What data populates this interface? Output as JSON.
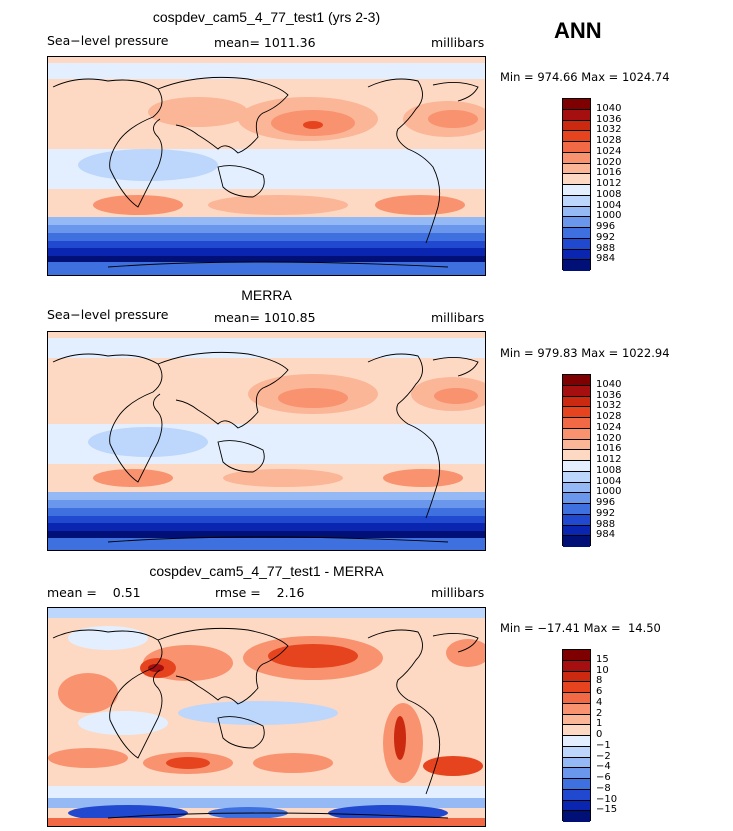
{
  "season": "ANN",
  "panels": [
    {
      "title": "cospdev_cam5_4_77_test1 (yrs 2-3)",
      "left_label": "Sea−level pressure",
      "center_label": "mean= 1011.36",
      "units": "millibars",
      "minmax": "Min = 974.66 Max = 1024.74",
      "colorbar": {
        "labels": [
          "1040",
          "1036",
          "1032",
          "1028",
          "1024",
          "1020",
          "1016",
          "1012",
          "1008",
          "1004",
          "1000",
          "996",
          "992",
          "988",
          "984"
        ],
        "colors": [
          "#7f0000",
          "#a50f0f",
          "#cc2a10",
          "#e5441f",
          "#f26a45",
          "#f8926f",
          "#fbb597",
          "#fdd9c3",
          "#e3efff",
          "#bdd6fb",
          "#94b9f5",
          "#6a97ec",
          "#3f70e0",
          "#2049cf",
          "#0a26b0",
          "#001077"
        ]
      }
    },
    {
      "title": "MERRA",
      "left_label": "Sea−level pressure",
      "center_label": "mean= 1010.85",
      "units": "millibars",
      "minmax": "Min = 979.83 Max = 1022.94",
      "colorbar": {
        "labels": [
          "1040",
          "1036",
          "1032",
          "1028",
          "1024",
          "1020",
          "1016",
          "1012",
          "1008",
          "1004",
          "1000",
          "996",
          "992",
          "988",
          "984"
        ],
        "colors": [
          "#7f0000",
          "#a50f0f",
          "#cc2a10",
          "#e5441f",
          "#f26a45",
          "#f8926f",
          "#fbb597",
          "#fdd9c3",
          "#e3efff",
          "#bdd6fb",
          "#94b9f5",
          "#6a97ec",
          "#3f70e0",
          "#2049cf",
          "#0a26b0",
          "#001077"
        ]
      }
    },
    {
      "title": "cospdev_cam5_4_77_test1 - MERRA",
      "left_label": "mean =    0.51",
      "center_label": "rmse =    2.16",
      "units": "millibars",
      "minmax": "Min = −17.41 Max =  14.50",
      "colorbar": {
        "labels": [
          "15",
          "10",
          "8",
          "6",
          "4",
          "2",
          "1",
          "0",
          "−1",
          "−2",
          "−4",
          "−6",
          "−8",
          "−10",
          "−15"
        ],
        "colors": [
          "#7f0000",
          "#a50f0f",
          "#cc2a10",
          "#e5441f",
          "#f26a45",
          "#f8926f",
          "#fbb597",
          "#fdd9c3",
          "#e3efff",
          "#bdd6fb",
          "#94b9f5",
          "#6a97ec",
          "#3f70e0",
          "#2049cf",
          "#0a26b0",
          "#001077"
        ]
      }
    }
  ]
}
